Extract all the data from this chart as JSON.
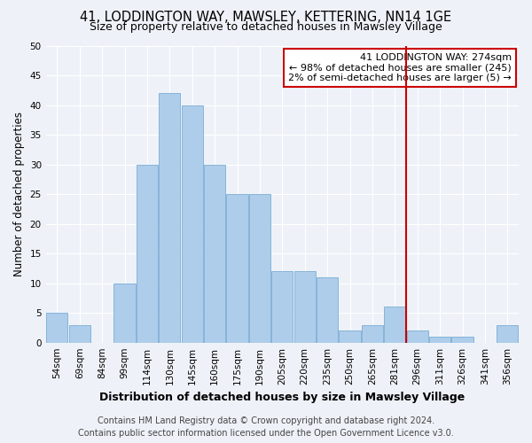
{
  "title": "41, LODDINGTON WAY, MAWSLEY, KETTERING, NN14 1GE",
  "subtitle": "Size of property relative to detached houses in Mawsley Village",
  "xlabel": "Distribution of detached houses by size in Mawsley Village",
  "ylabel": "Number of detached properties",
  "categories": [
    "54sqm",
    "69sqm",
    "84sqm",
    "99sqm",
    "114sqm",
    "130sqm",
    "145sqm",
    "160sqm",
    "175sqm",
    "190sqm",
    "205sqm",
    "220sqm",
    "235sqm",
    "250sqm",
    "265sqm",
    "281sqm",
    "296sqm",
    "311sqm",
    "326sqm",
    "341sqm",
    "356sqm"
  ],
  "values": [
    5,
    3,
    0,
    10,
    30,
    42,
    40,
    30,
    25,
    25,
    12,
    12,
    11,
    2,
    3,
    6,
    2,
    1,
    1,
    0,
    3
  ],
  "bar_color": "#aecdea",
  "bar_edge_color": "#7aadd4",
  "ylim": [
    0,
    50
  ],
  "yticks": [
    0,
    5,
    10,
    15,
    20,
    25,
    30,
    35,
    40,
    45,
    50
  ],
  "vline_x_index": 15,
  "vline_color": "#cc0000",
  "annotation_text": "41 LODDINGTON WAY: 274sqm\n← 98% of detached houses are smaller (245)\n2% of semi-detached houses are larger (5) →",
  "annotation_box_facecolor": "#ffffff",
  "annotation_box_edgecolor": "#cc0000",
  "footer_line1": "Contains HM Land Registry data © Crown copyright and database right 2024.",
  "footer_line2": "Contains public sector information licensed under the Open Government Licence v3.0.",
  "background_color": "#eef2f8",
  "grid_color": "#ffffff",
  "title_fontsize": 10.5,
  "subtitle_fontsize": 9,
  "xlabel_fontsize": 9,
  "ylabel_fontsize": 8.5,
  "tick_fontsize": 7.5,
  "footer_fontsize": 7,
  "annotation_fontsize": 8
}
